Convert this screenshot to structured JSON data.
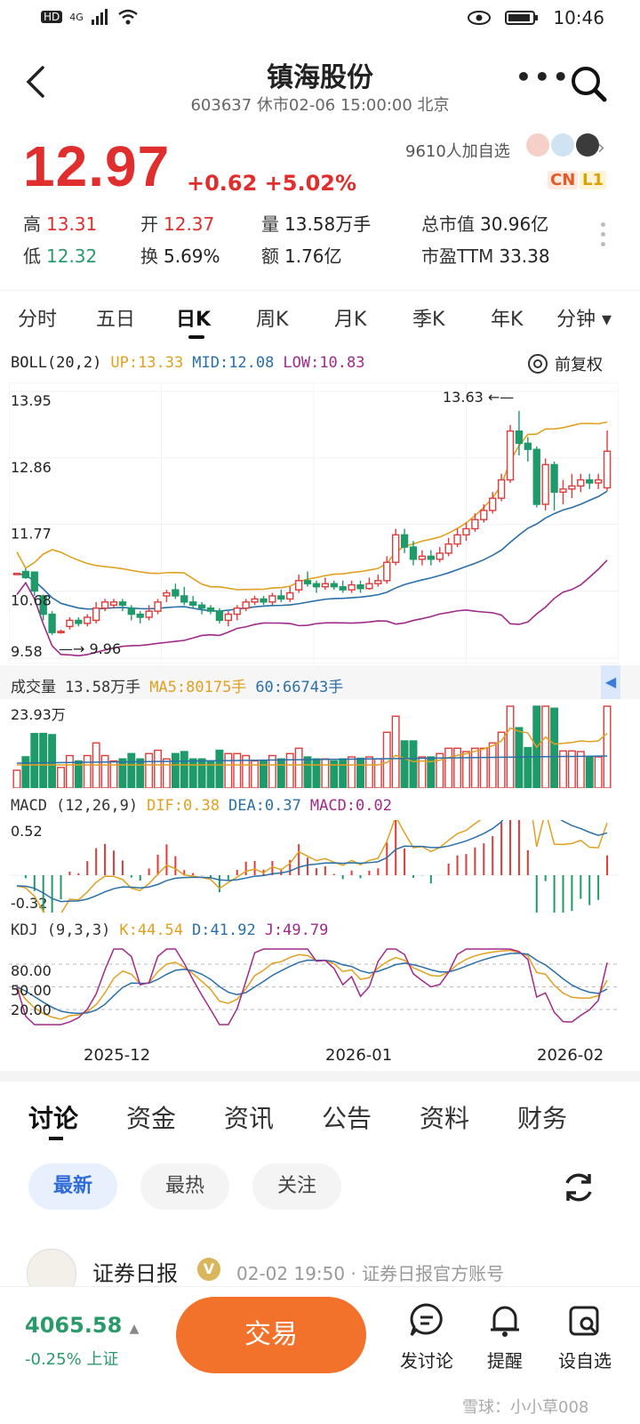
{
  "status_bar": {
    "net": "HD",
    "signal": "4G",
    "time": "10:46"
  },
  "header": {
    "title": "镇海股份",
    "subtitle": "603637 休市02-06 15:00:00 北京"
  },
  "quote": {
    "price": "12.97",
    "change": "+0.62 +5.02%",
    "followers": "9610人加自选",
    "badges": [
      "CN",
      "L1"
    ],
    "stats": [
      [
        {
          "label": "高",
          "value": "13.31",
          "color": "#e02d2d"
        },
        {
          "label": "开",
          "value": "12.37",
          "color": "#e02d2d"
        },
        {
          "label": "量",
          "value": "13.58万手",
          "color": "#222"
        },
        {
          "label": "总市值",
          "value": "30.96亿",
          "color": "#222"
        }
      ],
      [
        {
          "label": "低",
          "value": "12.32",
          "color": "#2b9a6b"
        },
        {
          "label": "换",
          "value": "5.69%",
          "color": "#222"
        },
        {
          "label": "额",
          "value": "1.76亿",
          "color": "#222"
        },
        {
          "label": "市盈TTM",
          "value": "33.38",
          "color": "#222"
        }
      ]
    ]
  },
  "period_tabs": [
    "分时",
    "五日",
    "日K",
    "周K",
    "月K",
    "季K",
    "年K",
    "分钟 ▾"
  ],
  "active_period": "日K",
  "boll": {
    "name": "BOLL(20,2)",
    "up": "UP:13.33",
    "mid": "MID:12.08",
    "low": "LOW:10.83",
    "adjust": "前复权"
  },
  "volume_legend": {
    "name": "成交量",
    "v": "13.58万手",
    "ma5": "MA5:80175手",
    "ma60": "60:66743手",
    "max_label": "23.93万"
  },
  "macd_legend": {
    "name": "MACD",
    "params": "(12,26,9)",
    "dif": "DIF:0.38",
    "dea": "DEA:0.37",
    "macd": "MACD:0.02",
    "ticks": [
      "0.52",
      "-0.32"
    ]
  },
  "kdj_legend": {
    "name": "KDJ",
    "params": "(9,3,3)",
    "k": "K:44.54",
    "d": "D:41.92",
    "j": "J:49.79",
    "ticks": [
      "80.00",
      "50.00",
      "20.00"
    ]
  },
  "chart_data": {
    "type": "candlestick",
    "y_ticks": [
      "13.95",
      "12.86",
      "11.77",
      "10.68",
      "9.58"
    ],
    "ylim": [
      9.58,
      13.95
    ],
    "high_label": "13.63",
    "low_label": "9.96",
    "x_labels": [
      "2025-12",
      "2026-01",
      "2026-02"
    ],
    "candles": [
      [
        10.97,
        10.97,
        10.97,
        10.97
      ],
      [
        11.0,
        10.9,
        11.05,
        10.88
      ],
      [
        10.99,
        10.68,
        11.0,
        10.6
      ],
      [
        10.6,
        10.3,
        10.62,
        10.2
      ],
      [
        10.3,
        10.0,
        10.35,
        9.96
      ],
      [
        10.02,
        10.02,
        10.05,
        9.98
      ],
      [
        10.1,
        10.2,
        10.25,
        10.05
      ],
      [
        10.2,
        10.15,
        10.25,
        10.1
      ],
      [
        10.15,
        10.25,
        10.3,
        10.1
      ],
      [
        10.2,
        10.4,
        10.5,
        10.15
      ],
      [
        10.4,
        10.5,
        10.55,
        10.35
      ],
      [
        10.45,
        10.5,
        10.55,
        10.4
      ],
      [
        10.5,
        10.45,
        10.55,
        10.35
      ],
      [
        10.4,
        10.3,
        10.45,
        10.2
      ],
      [
        10.3,
        10.25,
        10.35,
        10.15
      ],
      [
        10.25,
        10.35,
        10.45,
        10.2
      ],
      [
        10.35,
        10.5,
        10.55,
        10.3
      ],
      [
        10.6,
        10.65,
        10.7,
        10.5
      ],
      [
        10.7,
        10.6,
        10.8,
        10.55
      ],
      [
        10.6,
        10.5,
        10.75,
        10.45
      ],
      [
        10.5,
        10.45,
        10.6,
        10.4
      ],
      [
        10.45,
        10.4,
        10.5,
        10.3
      ],
      [
        10.4,
        10.35,
        10.45,
        10.3
      ],
      [
        10.35,
        10.2,
        10.4,
        10.15
      ],
      [
        10.2,
        10.3,
        10.35,
        10.1
      ],
      [
        10.3,
        10.4,
        10.45,
        10.2
      ],
      [
        10.4,
        10.5,
        10.55,
        10.35
      ],
      [
        10.5,
        10.55,
        10.6,
        10.45
      ],
      [
        10.55,
        10.5,
        10.6,
        10.45
      ],
      [
        10.5,
        10.6,
        10.65,
        10.45
      ],
      [
        10.6,
        10.55,
        10.7,
        10.5
      ],
      [
        10.55,
        10.65,
        10.75,
        10.5
      ],
      [
        10.7,
        10.85,
        10.95,
        10.65
      ],
      [
        10.85,
        10.8,
        11.0,
        10.75
      ],
      [
        10.8,
        10.75,
        10.85,
        10.65
      ],
      [
        10.75,
        10.8,
        10.9,
        10.7
      ],
      [
        10.8,
        10.75,
        10.85,
        10.7
      ],
      [
        10.75,
        10.7,
        10.85,
        10.65
      ],
      [
        10.7,
        10.78,
        10.85,
        10.65
      ],
      [
        10.78,
        10.72,
        10.85,
        10.65
      ],
      [
        10.72,
        10.8,
        10.9,
        10.7
      ],
      [
        10.8,
        10.85,
        10.95,
        10.75
      ],
      [
        10.85,
        11.15,
        11.25,
        10.8
      ],
      [
        11.15,
        11.6,
        11.7,
        11.1
      ],
      [
        11.6,
        11.4,
        11.7,
        11.3
      ],
      [
        11.4,
        11.2,
        11.5,
        11.1
      ],
      [
        11.2,
        11.25,
        11.35,
        11.1
      ],
      [
        11.25,
        11.2,
        11.35,
        11.1
      ],
      [
        11.2,
        11.3,
        11.4,
        11.15
      ],
      [
        11.3,
        11.45,
        11.55,
        11.25
      ],
      [
        11.45,
        11.6,
        11.7,
        11.4
      ],
      [
        11.6,
        11.7,
        11.8,
        11.5
      ],
      [
        11.7,
        11.85,
        11.95,
        11.65
      ],
      [
        11.85,
        12.0,
        12.1,
        11.8
      ],
      [
        12.0,
        12.2,
        12.3,
        11.95
      ],
      [
        12.2,
        12.5,
        12.6,
        12.15
      ],
      [
        12.5,
        13.3,
        13.4,
        12.45
      ],
      [
        13.3,
        13.1,
        13.63,
        12.9
      ],
      [
        13.1,
        13.0,
        13.2,
        12.8
      ],
      [
        13.0,
        12.1,
        13.05,
        12.05
      ],
      [
        12.1,
        12.75,
        12.85,
        12.0
      ],
      [
        12.75,
        12.3,
        12.8,
        12.0
      ],
      [
        12.3,
        12.35,
        12.5,
        12.1
      ],
      [
        12.35,
        12.4,
        12.6,
        12.2
      ],
      [
        12.4,
        12.5,
        12.6,
        12.3
      ],
      [
        12.5,
        12.45,
        12.6,
        12.35
      ],
      [
        12.45,
        12.5,
        12.6,
        12.35
      ],
      [
        12.37,
        12.97,
        13.31,
        12.32
      ]
    ]
  },
  "section_tabs": [
    "讨论",
    "资金",
    "资讯",
    "公告",
    "资料",
    "财务"
  ],
  "filter_pills": [
    "最新",
    "最热",
    "关注"
  ],
  "post": {
    "author": "证券日报",
    "meta": "02-02 19:50 · 证券日报官方账号"
  },
  "bottom_bar": {
    "index_value": "4065.58",
    "index_change": "-0.25% 上证",
    "trade": "交易",
    "items": [
      "发讨论",
      "提醒",
      "设自选"
    ],
    "watermark": "雪球：小小草008"
  }
}
